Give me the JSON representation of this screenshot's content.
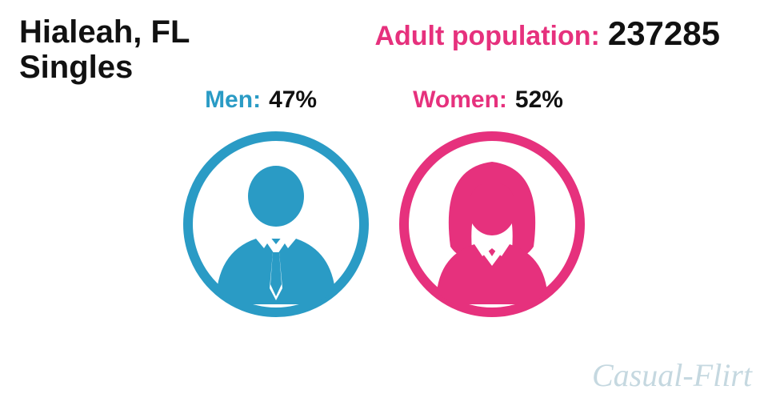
{
  "header": {
    "city": "Hialeah, FL",
    "subtitle": "Singles",
    "population_label": "Adult population:",
    "population_value": "237285",
    "population_label_color": "#e6317d",
    "population_value_color": "#111111"
  },
  "stats": {
    "men": {
      "label": "Men:",
      "value": "47%",
      "label_color": "#2a9bc5",
      "value_color": "#111111"
    },
    "women": {
      "label": "Women:",
      "value": "52%",
      "label_color": "#e6317d",
      "value_color": "#111111"
    }
  },
  "icons": {
    "men_color": "#2a9bc5",
    "women_color": "#e6317d",
    "circle_stroke_width": 12,
    "size": 240
  },
  "watermark": {
    "text": "Casual-Flirt",
    "color": "#c5d8e0"
  },
  "background_color": "#ffffff"
}
